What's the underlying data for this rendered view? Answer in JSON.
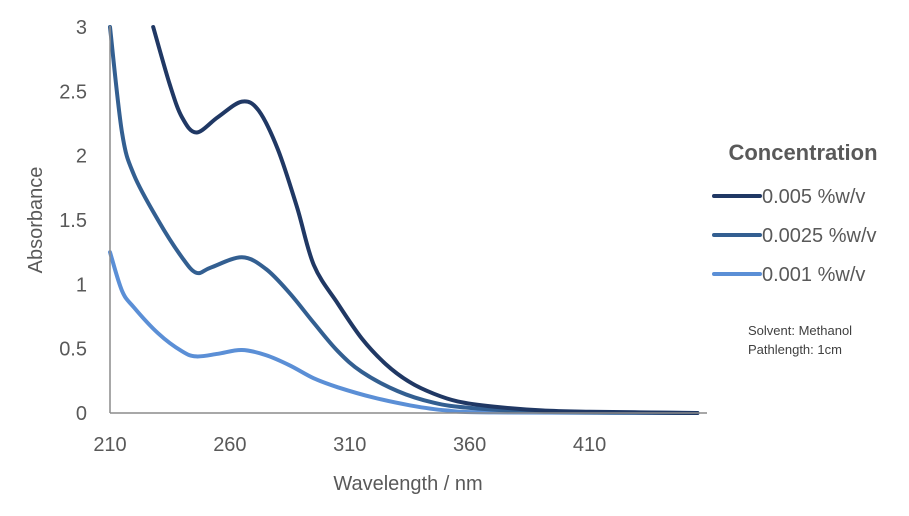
{
  "chart_data": {
    "type": "line",
    "title": "",
    "xlabel": "Wavelength / nm",
    "ylabel": "Absorbance",
    "xlim": [
      210,
      459
    ],
    "ylim": [
      0,
      3
    ],
    "xticks": [
      "210",
      "260",
      "310",
      "360",
      "410"
    ],
    "yticks": [
      "0",
      "0.5",
      "1",
      "1.5",
      "2",
      "2.5",
      "3"
    ],
    "grid": false,
    "legend": {
      "title": "Concentration",
      "placement": "right"
    },
    "annotations": [
      "Solvent: Methanol",
      "Pathlength: 1cm"
    ],
    "series": [
      {
        "name": "0.005 %w/v",
        "color": "#203864",
        "x": [
          228,
          235,
          240,
          246,
          255,
          265,
          272,
          280,
          288,
          295,
          305,
          315,
          325,
          335,
          345,
          355,
          370,
          390,
          410,
          455
        ],
        "y": [
          3.0,
          2.55,
          2.3,
          2.18,
          2.3,
          2.42,
          2.35,
          2.05,
          1.6,
          1.15,
          0.85,
          0.58,
          0.38,
          0.24,
          0.15,
          0.09,
          0.05,
          0.02,
          0.01,
          0.0
        ]
      },
      {
        "name": "0.0025 %w/v",
        "color": "#335f91",
        "x": [
          210,
          215,
          220,
          230,
          240,
          246,
          252,
          265,
          275,
          285,
          295,
          305,
          315,
          330,
          345,
          360,
          390,
          455
        ],
        "y": [
          3.0,
          2.18,
          1.85,
          1.5,
          1.21,
          1.09,
          1.13,
          1.21,
          1.12,
          0.93,
          0.7,
          0.48,
          0.32,
          0.17,
          0.08,
          0.04,
          0.01,
          0.0
        ]
      },
      {
        "name": "0.001 %w/v",
        "color": "#5b8fd6",
        "x": [
          210,
          215,
          220,
          230,
          240,
          246,
          255,
          265,
          275,
          285,
          295,
          305,
          320,
          335,
          350,
          370,
          455
        ],
        "y": [
          1.25,
          0.95,
          0.82,
          0.62,
          0.48,
          0.44,
          0.46,
          0.49,
          0.45,
          0.37,
          0.27,
          0.2,
          0.12,
          0.06,
          0.02,
          0.005,
          0.0
        ]
      }
    ]
  }
}
